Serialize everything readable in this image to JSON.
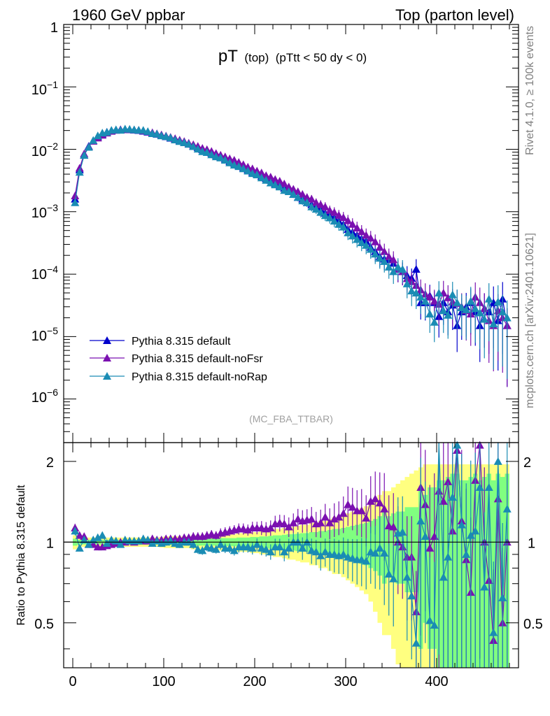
{
  "header": {
    "left": "1960 GeV ppbar",
    "right": "Top (parton level)"
  },
  "side_labels": {
    "rivet": "Rivet 4.1.0, ≥ 100k events",
    "mcplots": "mcplots.cern.ch [arXiv:2401.10621]"
  },
  "colors": {
    "default": "#0000cc",
    "noFsr": "#7a10b0",
    "noRap": "#1a8cb4",
    "band_inner": "#80ff80",
    "band_outer": "#ffff80"
  },
  "chart_data": [
    {
      "type": "line",
      "title_main": "pT",
      "title_sub1": "(top)",
      "title_sub2": "(pTtt < 50 dy < 0)",
      "watermark": "(MC_FBA_TTBAR)",
      "yscale": "log",
      "xlim": [
        -10,
        490
      ],
      "ylim": [
        2e-07,
        1
      ],
      "ytick_labels": [
        "1",
        "10^-1",
        "10^-2",
        "10^-3",
        "10^-4",
        "10^-5",
        "10^-6"
      ],
      "legend": [
        "Pythia 8.315 default",
        "Pythia 8.315 default-noFsr",
        "Pythia 8.315 default-noRap"
      ],
      "legend_position": "bottom-left",
      "x": [
        2.5,
        7.5,
        12.5,
        17.5,
        22.5,
        27.5,
        32.5,
        37.5,
        42.5,
        47.5,
        52.5,
        57.5,
        62.5,
        67.5,
        72.5,
        77.5,
        82.5,
        87.5,
        92.5,
        97.5,
        102.5,
        107.5,
        112.5,
        117.5,
        122.5,
        127.5,
        132.5,
        137.5,
        142.5,
        147.5,
        152.5,
        157.5,
        162.5,
        167.5,
        172.5,
        177.5,
        182.5,
        187.5,
        192.5,
        197.5,
        202.5,
        207.5,
        212.5,
        217.5,
        222.5,
        227.5,
        232.5,
        237.5,
        242.5,
        247.5,
        252.5,
        257.5,
        262.5,
        267.5,
        272.5,
        277.5,
        282.5,
        287.5,
        292.5,
        297.5,
        302.5,
        307.5,
        312.5,
        317.5,
        322.5,
        327.5,
        332.5,
        337.5,
        342.5,
        347.5,
        352.5,
        357.5,
        362.5,
        367.5,
        372.5,
        377.5,
        382.5,
        387.5,
        392.5,
        397.5,
        402.5,
        407.5,
        412.5,
        417.5,
        422.5,
        427.5,
        432.5,
        437.5,
        442.5,
        447.5,
        452.5,
        457.5,
        462.5,
        467.5,
        472.5,
        477.5
      ],
      "series": [
        {
          "name": "Pythia 8.315 default",
          "color": "#0000cc",
          "values": [
            0.0016,
            0.0047,
            0.0081,
            0.0112,
            0.0138,
            0.0159,
            0.0176,
            0.0189,
            0.0198,
            0.0204,
            0.0207,
            0.0208,
            0.0207,
            0.0204,
            0.0201,
            0.0196,
            0.0189,
            0.018,
            0.0175,
            0.0167,
            0.016,
            0.0151,
            0.0144,
            0.0137,
            0.0128,
            0.0121,
            0.0113,
            0.0107,
            0.0099,
            0.0093,
            0.0087,
            0.0081,
            0.0075,
            0.007,
            0.0064,
            0.006,
            0.0055,
            0.0051,
            0.0047,
            0.0043,
            0.004,
            0.0037,
            0.0034,
            0.0032,
            0.0028,
            0.0026,
            0.0024,
            0.0022,
            0.0019,
            0.0017,
            0.0016,
            0.0014,
            0.0013,
            0.0012,
            0.0011,
            0.00095,
            0.00089,
            0.0008,
            0.00071,
            0.00063,
            0.00052,
            0.00047,
            0.00042,
            0.00037,
            0.00034,
            0.00027,
            0.00023,
            0.00019,
            0.000175,
            0.00017,
            0.00015,
            0.00012,
            0.00011,
            9.5e-05,
            8.6e-05,
            0.00012,
            3.5e-05,
            3.5e-05,
            4.5e-05,
            3.5e-05,
            2.1e-05,
            3.5e-05,
            2.5e-05,
            3.2e-05,
            1.5e-05,
            2.5e-05,
            3e-05,
            3.5e-05,
            2.5e-05,
            1.5e-05,
            2.8e-05,
            2.5e-05,
            3.5e-05,
            1.8e-05,
            4e-05,
            1.5e-05
          ]
        },
        {
          "name": "Pythia 8.315 default-noFsr",
          "color": "#7a10b0",
          "values": [
            0.0018,
            0.005,
            0.0085,
            0.011,
            0.0135,
            0.0152,
            0.0169,
            0.0183,
            0.0195,
            0.0202,
            0.0206,
            0.0207,
            0.0208,
            0.0205,
            0.0203,
            0.0198,
            0.0191,
            0.0185,
            0.0178,
            0.0171,
            0.0164,
            0.0156,
            0.0149,
            0.0141,
            0.0134,
            0.0126,
            0.0119,
            0.0112,
            0.0104,
            0.0099,
            0.0093,
            0.0086,
            0.0081,
            0.0076,
            0.0071,
            0.0067,
            0.0062,
            0.0057,
            0.0052,
            0.0049,
            0.0045,
            0.0042,
            0.0038,
            0.0036,
            0.0033,
            0.0031,
            0.0028,
            0.0025,
            0.0023,
            0.0021,
            0.0019,
            0.0017,
            0.0016,
            0.0014,
            0.0013,
            0.0012,
            0.00105,
            0.00098,
            0.00088,
            0.00081,
            0.00072,
            0.00063,
            0.00055,
            0.00048,
            0.00042,
            0.00038,
            0.00033,
            0.00027,
            0.00023,
            0.00019,
            0.00017,
            0.00012,
            0.00011,
            8.5e-05,
            7.6e-05,
            6.6e-05,
            5.6e-05,
            4.8e-05,
            4.3e-05,
            3.7e-05,
            3.3e-05,
            5e-05,
            4.2e-05,
            3.6e-05,
            3.4e-05,
            3e-05,
            2.6e-05,
            2.3e-05,
            4.3e-05,
            3.5e-05,
            2.8e-05,
            1.8e-05,
            1.5e-05,
            2.6e-05,
            2e-05,
            1.5e-05
          ]
        },
        {
          "name": "Pythia 8.315 default-noRap",
          "color": "#1a8cb4",
          "values": [
            0.0014,
            0.0043,
            0.008,
            0.0108,
            0.0139,
            0.0165,
            0.0183,
            0.0188,
            0.0202,
            0.0207,
            0.0203,
            0.0212,
            0.021,
            0.0206,
            0.0203,
            0.0202,
            0.0193,
            0.0179,
            0.0176,
            0.0165,
            0.0161,
            0.0153,
            0.0142,
            0.0134,
            0.0128,
            0.0121,
            0.0111,
            0.0101,
            0.0092,
            0.0089,
            0.0082,
            0.0076,
            0.0073,
            0.0067,
            0.0061,
            0.0056,
            0.0053,
            0.0049,
            0.0045,
            0.0041,
            0.0039,
            0.0035,
            0.0032,
            0.0029,
            0.0027,
            0.0025,
            0.0022,
            0.0021,
            0.0019,
            0.0017,
            0.0015,
            0.0014,
            0.0012,
            0.0011,
            0.00098,
            0.00087,
            0.0008,
            0.00071,
            0.00063,
            0.00057,
            0.00046,
            0.00041,
            0.00036,
            0.00032,
            0.00029,
            0.00025,
            0.00021,
            0.00018,
            0.00016,
            0.00013,
            0.00011,
            0.00013,
            0.00012,
            7e-05,
            5.4e-05,
            5e-05,
            4.3e-05,
            3.7e-05,
            2.3e-05,
            1.7e-05,
            5e-05,
            2.6e-05,
            2.2e-05,
            4.7e-05,
            3.5e-05,
            2.9e-05,
            2.7e-05,
            3.7e-05,
            2.8e-05,
            2.4e-05,
            1.9e-05,
            4e-05,
            1.6e-05,
            3.6e-05,
            2.5e-05,
            2e-05
          ]
        }
      ]
    },
    {
      "type": "line",
      "ylabel": "Ratio to Pythia 8.315 default",
      "yscale": "log",
      "xlim": [
        -10,
        490
      ],
      "ylim": [
        0.34,
        2.35
      ],
      "yticks": [
        0.5,
        1,
        2
      ],
      "ytick_labels": [
        "0.5",
        "1",
        "2"
      ],
      "xticks": [
        0,
        100,
        200,
        300,
        400
      ],
      "xtick_labels": [
        "0",
        "100",
        "200",
        "300",
        "400"
      ],
      "reference_line": 1,
      "x": [
        2.5,
        7.5,
        12.5,
        17.5,
        22.5,
        27.5,
        32.5,
        37.5,
        42.5,
        47.5,
        52.5,
        57.5,
        62.5,
        67.5,
        72.5,
        77.5,
        82.5,
        87.5,
        92.5,
        97.5,
        102.5,
        107.5,
        112.5,
        117.5,
        122.5,
        127.5,
        132.5,
        137.5,
        142.5,
        147.5,
        152.5,
        157.5,
        162.5,
        167.5,
        172.5,
        177.5,
        182.5,
        187.5,
        192.5,
        197.5,
        202.5,
        207.5,
        212.5,
        217.5,
        222.5,
        227.5,
        232.5,
        237.5,
        242.5,
        247.5,
        252.5,
        257.5,
        262.5,
        267.5,
        272.5,
        277.5,
        282.5,
        287.5,
        292.5,
        297.5,
        302.5,
        307.5,
        312.5,
        317.5,
        322.5,
        327.5,
        332.5,
        337.5,
        342.5,
        347.5,
        352.5,
        357.5,
        362.5,
        367.5,
        372.5,
        377.5,
        382.5,
        387.5,
        392.5,
        397.5,
        402.5,
        407.5,
        412.5,
        417.5,
        422.5,
        427.5,
        432.5,
        437.5,
        442.5,
        447.5,
        452.5,
        457.5,
        462.5,
        467.5,
        472.5,
        477.5
      ],
      "band_halfwidth_inner": [
        0.03,
        0.02,
        0.02,
        0.02,
        0.02,
        0.02,
        0.02,
        0.02,
        0.02,
        0.02,
        0.02,
        0.02,
        0.02,
        0.02,
        0.02,
        0.02,
        0.02,
        0.02,
        0.02,
        0.02,
        0.025,
        0.025,
        0.025,
        0.025,
        0.025,
        0.025,
        0.03,
        0.03,
        0.03,
        0.03,
        0.03,
        0.03,
        0.035,
        0.035,
        0.035,
        0.035,
        0.04,
        0.04,
        0.04,
        0.045,
        0.045,
        0.05,
        0.05,
        0.055,
        0.06,
        0.06,
        0.065,
        0.07,
        0.07,
        0.075,
        0.08,
        0.08,
        0.09,
        0.09,
        0.1,
        0.1,
        0.11,
        0.12,
        0.12,
        0.13,
        0.14,
        0.15,
        0.16,
        0.17,
        0.18,
        0.2,
        0.22,
        0.25,
        0.3,
        0.25,
        0.28,
        0.3,
        0.3,
        0.35,
        0.35,
        0.35,
        0.6,
        0.5,
        0.6,
        0.6,
        0.7,
        0.7,
        0.75,
        0.8,
        0.8,
        0.7,
        0.7,
        0.75,
        0.8,
        0.7,
        0.75,
        0.8,
        0.7,
        0.8,
        0.75,
        0.8
      ],
      "band_halfwidth_outer": [
        0.06,
        0.04,
        0.04,
        0.04,
        0.04,
        0.04,
        0.04,
        0.04,
        0.04,
        0.04,
        0.04,
        0.04,
        0.04,
        0.04,
        0.04,
        0.04,
        0.04,
        0.04,
        0.04,
        0.045,
        0.05,
        0.05,
        0.05,
        0.05,
        0.05,
        0.05,
        0.06,
        0.06,
        0.06,
        0.06,
        0.06,
        0.06,
        0.07,
        0.07,
        0.07,
        0.07,
        0.08,
        0.08,
        0.08,
        0.09,
        0.09,
        0.1,
        0.1,
        0.11,
        0.12,
        0.12,
        0.13,
        0.14,
        0.14,
        0.15,
        0.16,
        0.16,
        0.18,
        0.18,
        0.2,
        0.2,
        0.22,
        0.24,
        0.24,
        0.26,
        0.28,
        0.3,
        0.32,
        0.34,
        0.36,
        0.4,
        0.45,
        0.5,
        0.55,
        0.55,
        0.6,
        0.65,
        0.7,
        0.75,
        0.8,
        0.85,
        0.9,
        0.95,
        0.95,
        0.95,
        0.95,
        0.95,
        0.95,
        0.95,
        0.95,
        0.95,
        0.95,
        0.95,
        0.95,
        0.95,
        0.95,
        0.95,
        0.95,
        0.95,
        0.95,
        0.95
      ],
      "series": [
        {
          "name": "Pythia 8.315 default-noFsr",
          "color": "#7a10b0",
          "values": [
            1.13,
            1.06,
            1.05,
            0.98,
            0.98,
            0.96,
            0.96,
            0.97,
            0.98,
            0.99,
            1.0,
            1.0,
            1.01,
            1.0,
            1.01,
            1.01,
            1.01,
            1.03,
            1.02,
            1.02,
            1.03,
            1.03,
            1.03,
            1.03,
            1.04,
            1.04,
            1.05,
            1.05,
            1.05,
            1.06,
            1.07,
            1.06,
            1.08,
            1.09,
            1.1,
            1.11,
            1.12,
            1.12,
            1.11,
            1.13,
            1.13,
            1.13,
            1.12,
            1.13,
            1.17,
            1.18,
            1.17,
            1.14,
            1.18,
            1.22,
            1.2,
            1.21,
            1.22,
            1.17,
            1.18,
            1.24,
            1.18,
            1.22,
            1.24,
            1.28,
            1.38,
            1.35,
            1.31,
            1.31,
            1.23,
            1.42,
            1.45,
            1.4,
            1.33,
            1.15,
            1.14,
            1.0,
            0.96,
            0.88,
            0.88,
            0.55,
            1.6,
            1.38,
            0.95,
            1.05,
            1.55,
            1.42,
            1.68,
            1.1,
            2.2,
            1.2,
            0.86,
            0.65,
            1.7,
            2.3,
            1.0,
            0.72,
            0.43,
            1.45,
            0.5,
            1.0
          ]
        },
        {
          "name": "Pythia 8.315 default-noRap",
          "color": "#1a8cb4",
          "values": [
            1.1,
            0.95,
            1.02,
            0.98,
            1.02,
            1.04,
            1.06,
            0.99,
            1.02,
            1.01,
            0.98,
            1.02,
            1.01,
            1.01,
            1.01,
            1.03,
            1.02,
            0.99,
            1.01,
            0.99,
            1.0,
            1.01,
            0.99,
            0.98,
            1.0,
            1.0,
            0.98,
            0.94,
            0.93,
            0.96,
            0.95,
            0.94,
            0.98,
            0.95,
            0.95,
            0.93,
            0.96,
            0.96,
            0.96,
            0.95,
            0.98,
            0.95,
            0.94,
            0.92,
            0.96,
            0.96,
            0.92,
            0.95,
            1.0,
            1.0,
            0.95,
            1.0,
            0.93,
            0.92,
            0.89,
            0.92,
            0.9,
            0.9,
            0.89,
            0.9,
            0.88,
            0.87,
            0.86,
            0.86,
            0.85,
            0.92,
            0.91,
            0.95,
            0.91,
            0.76,
            0.73,
            1.08,
            1.09,
            0.74,
            0.63,
            0.42,
            1.2,
            1.05,
            0.51,
            0.49,
            2.38,
            0.74,
            0.88,
            1.47,
            2.3,
            1.16,
            0.9,
            1.06,
            1.1,
            1.6,
            0.68,
            1.6,
            0.46,
            2.0,
            0.62,
            1.33
          ]
        }
      ]
    }
  ]
}
